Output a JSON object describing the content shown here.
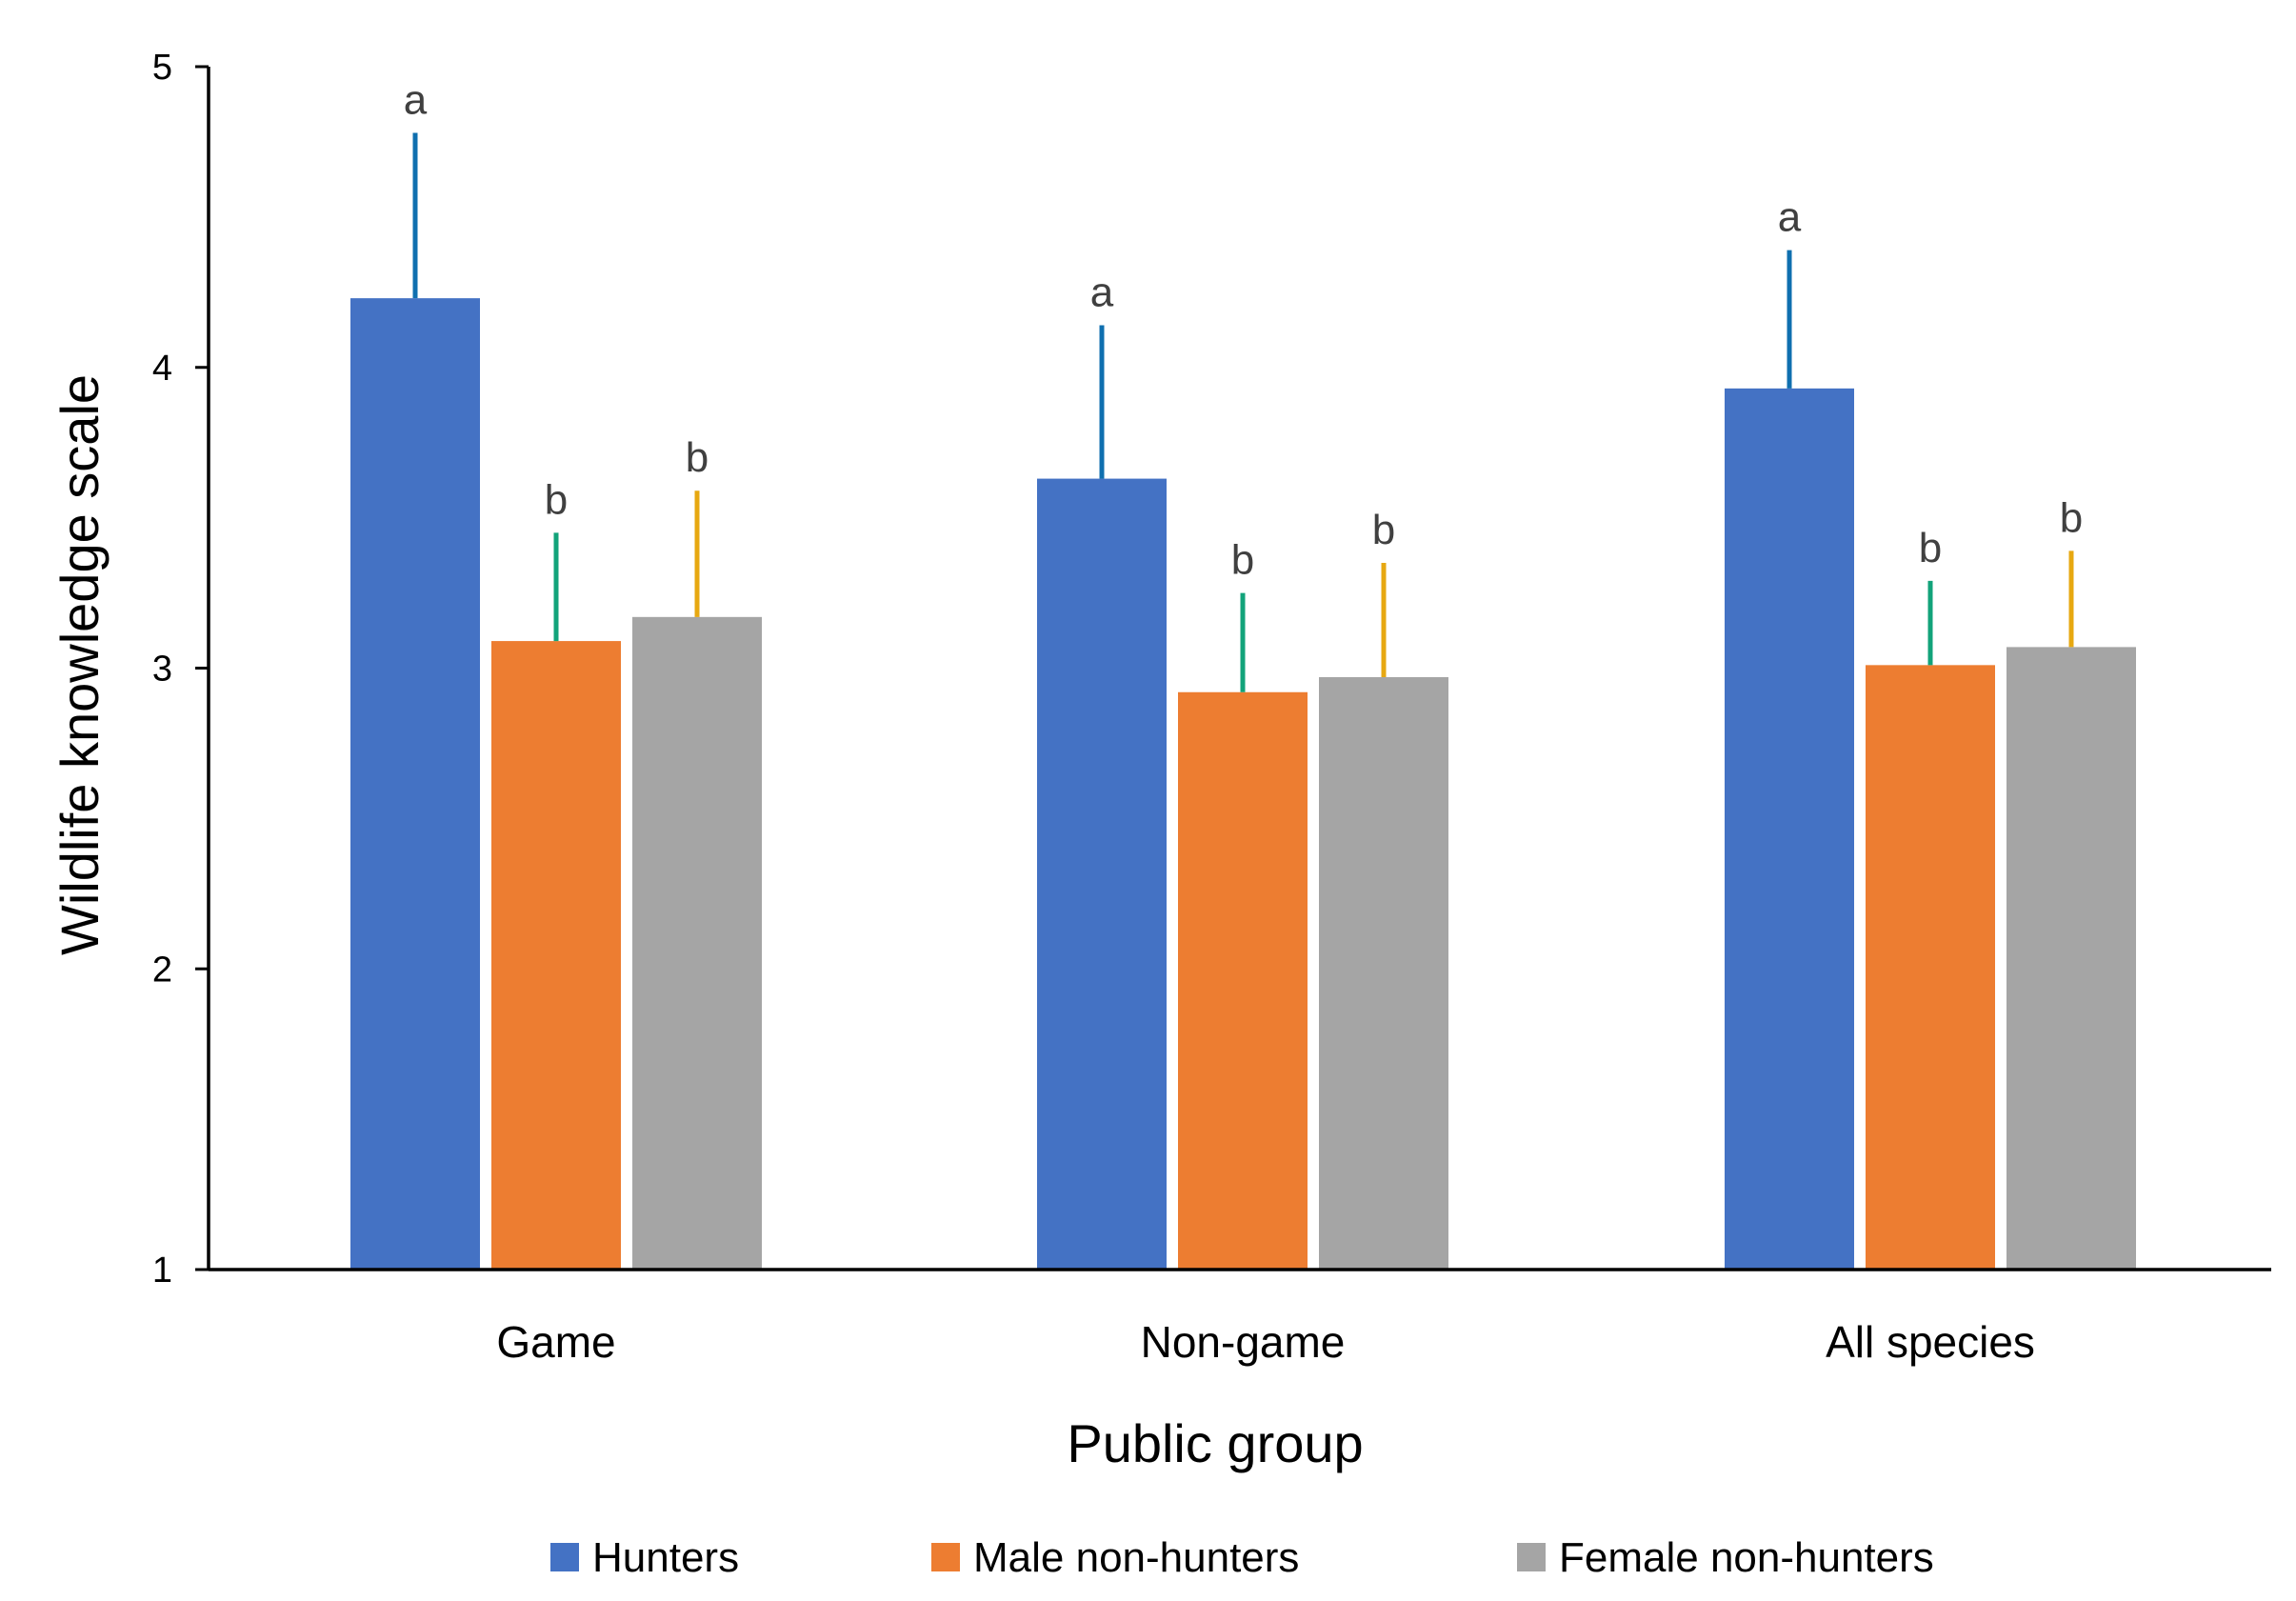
{
  "chart_data": {
    "type": "bar",
    "title": "",
    "xlabel": "Public group",
    "ylabel": "Wildlife knowledge scale",
    "ylim": [
      1,
      5
    ],
    "yticks": [
      "1",
      "2",
      "3",
      "4",
      "5"
    ],
    "grid": false,
    "legend_position": "bottom",
    "categories": [
      "Game",
      "Non-game",
      "All species"
    ],
    "series": [
      {
        "name": "Hunters",
        "color": "#4472C4",
        "error_color": "#0F6FAF",
        "values": [
          4.23,
          3.63,
          3.93
        ],
        "error_upper": [
          4.78,
          4.14,
          4.39
        ],
        "labels": [
          "a",
          "a",
          "a"
        ]
      },
      {
        "name": "Male non-hunters",
        "color": "#ED7D31",
        "error_color": "#12A37A",
        "values": [
          3.09,
          2.92,
          3.01
        ],
        "error_upper": [
          3.45,
          3.25,
          3.29
        ],
        "labels": [
          "b",
          "b",
          "b"
        ]
      },
      {
        "name": "Female non-hunters",
        "color": "#A5A5A5",
        "error_color": "#E7A811",
        "values": [
          3.17,
          2.97,
          3.07
        ],
        "error_upper": [
          3.59,
          3.35,
          3.39
        ],
        "labels": [
          "b",
          "b",
          "b"
        ]
      }
    ]
  }
}
